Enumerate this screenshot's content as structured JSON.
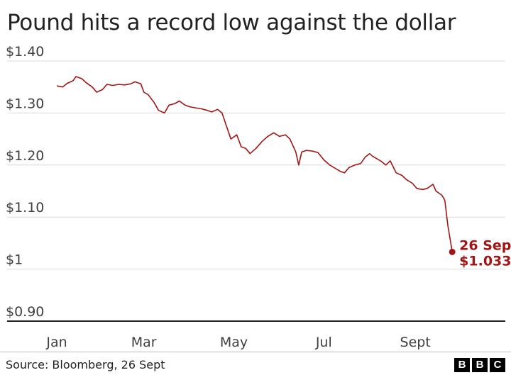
{
  "title": "Pound hits a record low against the dollar",
  "source": "Source: Bloomberg, 26 Sept",
  "logo": [
    "B",
    "B",
    "C"
  ],
  "colors": {
    "line": "#a11515",
    "grid": "#d9d9d9",
    "axis": "#222222"
  },
  "chart_data": {
    "type": "line",
    "title": "Pound hits a record low against the dollar",
    "xlabel": "",
    "ylabel": "",
    "ylim": [
      0.9,
      1.4
    ],
    "yticks": [
      {
        "value": 1.4,
        "label": "$1.40"
      },
      {
        "value": 1.3,
        "label": "$1.30"
      },
      {
        "value": 1.2,
        "label": "$1.20"
      },
      {
        "value": 1.1,
        "label": "$1.10"
      },
      {
        "value": 1.0,
        "label": "$1"
      },
      {
        "value": 0.9,
        "label": "$0.90"
      }
    ],
    "xlim": [
      "2022-01-01",
      "2022-11-01"
    ],
    "xticks": [
      {
        "date": "2022-01-01",
        "label": "Jan"
      },
      {
        "date": "2022-03-01",
        "label": "Mar"
      },
      {
        "date": "2022-05-01",
        "label": "May"
      },
      {
        "date": "2022-07-01",
        "label": "Jul"
      },
      {
        "date": "2022-09-01",
        "label": "Sept"
      }
    ],
    "grid": true,
    "series": [
      {
        "points": [
          [
            "2022-01-01",
            1.352
          ],
          [
            "2022-01-05",
            1.35
          ],
          [
            "2022-01-08",
            1.357
          ],
          [
            "2022-01-12",
            1.362
          ],
          [
            "2022-01-14",
            1.37
          ],
          [
            "2022-01-18",
            1.366
          ],
          [
            "2022-01-21",
            1.358
          ],
          [
            "2022-01-25",
            1.35
          ],
          [
            "2022-01-28",
            1.34
          ],
          [
            "2022-02-01",
            1.345
          ],
          [
            "2022-02-04",
            1.355
          ],
          [
            "2022-02-08",
            1.353
          ],
          [
            "2022-02-12",
            1.355
          ],
          [
            "2022-02-16",
            1.354
          ],
          [
            "2022-02-20",
            1.356
          ],
          [
            "2022-02-23",
            1.36
          ],
          [
            "2022-02-27",
            1.356
          ],
          [
            "2022-03-01",
            1.34
          ],
          [
            "2022-03-04",
            1.335
          ],
          [
            "2022-03-08",
            1.32
          ],
          [
            "2022-03-11",
            1.305
          ],
          [
            "2022-03-15",
            1.3
          ],
          [
            "2022-03-18",
            1.315
          ],
          [
            "2022-03-22",
            1.318
          ],
          [
            "2022-03-25",
            1.323
          ],
          [
            "2022-03-29",
            1.315
          ],
          [
            "2022-04-01",
            1.312
          ],
          [
            "2022-04-05",
            1.31
          ],
          [
            "2022-04-09",
            1.308
          ],
          [
            "2022-04-13",
            1.305
          ],
          [
            "2022-04-16",
            1.302
          ],
          [
            "2022-04-20",
            1.307
          ],
          [
            "2022-04-23",
            1.3
          ],
          [
            "2022-04-26",
            1.275
          ],
          [
            "2022-04-29",
            1.25
          ],
          [
            "2022-05-03",
            1.258
          ],
          [
            "2022-05-06",
            1.235
          ],
          [
            "2022-05-09",
            1.232
          ],
          [
            "2022-05-12",
            1.222
          ],
          [
            "2022-05-16",
            1.232
          ],
          [
            "2022-05-20",
            1.245
          ],
          [
            "2022-05-24",
            1.255
          ],
          [
            "2022-05-28",
            1.262
          ],
          [
            "2022-06-01",
            1.255
          ],
          [
            "2022-06-05",
            1.258
          ],
          [
            "2022-06-08",
            1.25
          ],
          [
            "2022-06-12",
            1.225
          ],
          [
            "2022-06-14",
            1.2
          ],
          [
            "2022-06-16",
            1.225
          ],
          [
            "2022-06-19",
            1.228
          ],
          [
            "2022-06-23",
            1.227
          ],
          [
            "2022-06-27",
            1.224
          ],
          [
            "2022-07-01",
            1.21
          ],
          [
            "2022-07-05",
            1.2
          ],
          [
            "2022-07-08",
            1.195
          ],
          [
            "2022-07-12",
            1.188
          ],
          [
            "2022-07-15",
            1.185
          ],
          [
            "2022-07-18",
            1.195
          ],
          [
            "2022-07-22",
            1.2
          ],
          [
            "2022-07-26",
            1.203
          ],
          [
            "2022-07-29",
            1.215
          ],
          [
            "2022-08-01",
            1.222
          ],
          [
            "2022-08-03",
            1.217
          ],
          [
            "2022-08-06",
            1.212
          ],
          [
            "2022-08-09",
            1.207
          ],
          [
            "2022-08-12",
            1.2
          ],
          [
            "2022-08-15",
            1.208
          ],
          [
            "2022-08-19",
            1.185
          ],
          [
            "2022-08-23",
            1.18
          ],
          [
            "2022-08-26",
            1.172
          ],
          [
            "2022-08-30",
            1.165
          ],
          [
            "2022-09-02",
            1.155
          ],
          [
            "2022-09-06",
            1.153
          ],
          [
            "2022-09-09",
            1.155
          ],
          [
            "2022-09-13",
            1.163
          ],
          [
            "2022-09-15",
            1.15
          ],
          [
            "2022-09-19",
            1.142
          ],
          [
            "2022-09-21",
            1.132
          ],
          [
            "2022-09-23",
            1.085
          ],
          [
            "2022-09-26",
            1.033
          ]
        ]
      }
    ],
    "annotations": [
      {
        "date": "2022-09-26",
        "value": 1.033,
        "lines": [
          "26 Sept",
          "$1.033"
        ]
      }
    ]
  }
}
